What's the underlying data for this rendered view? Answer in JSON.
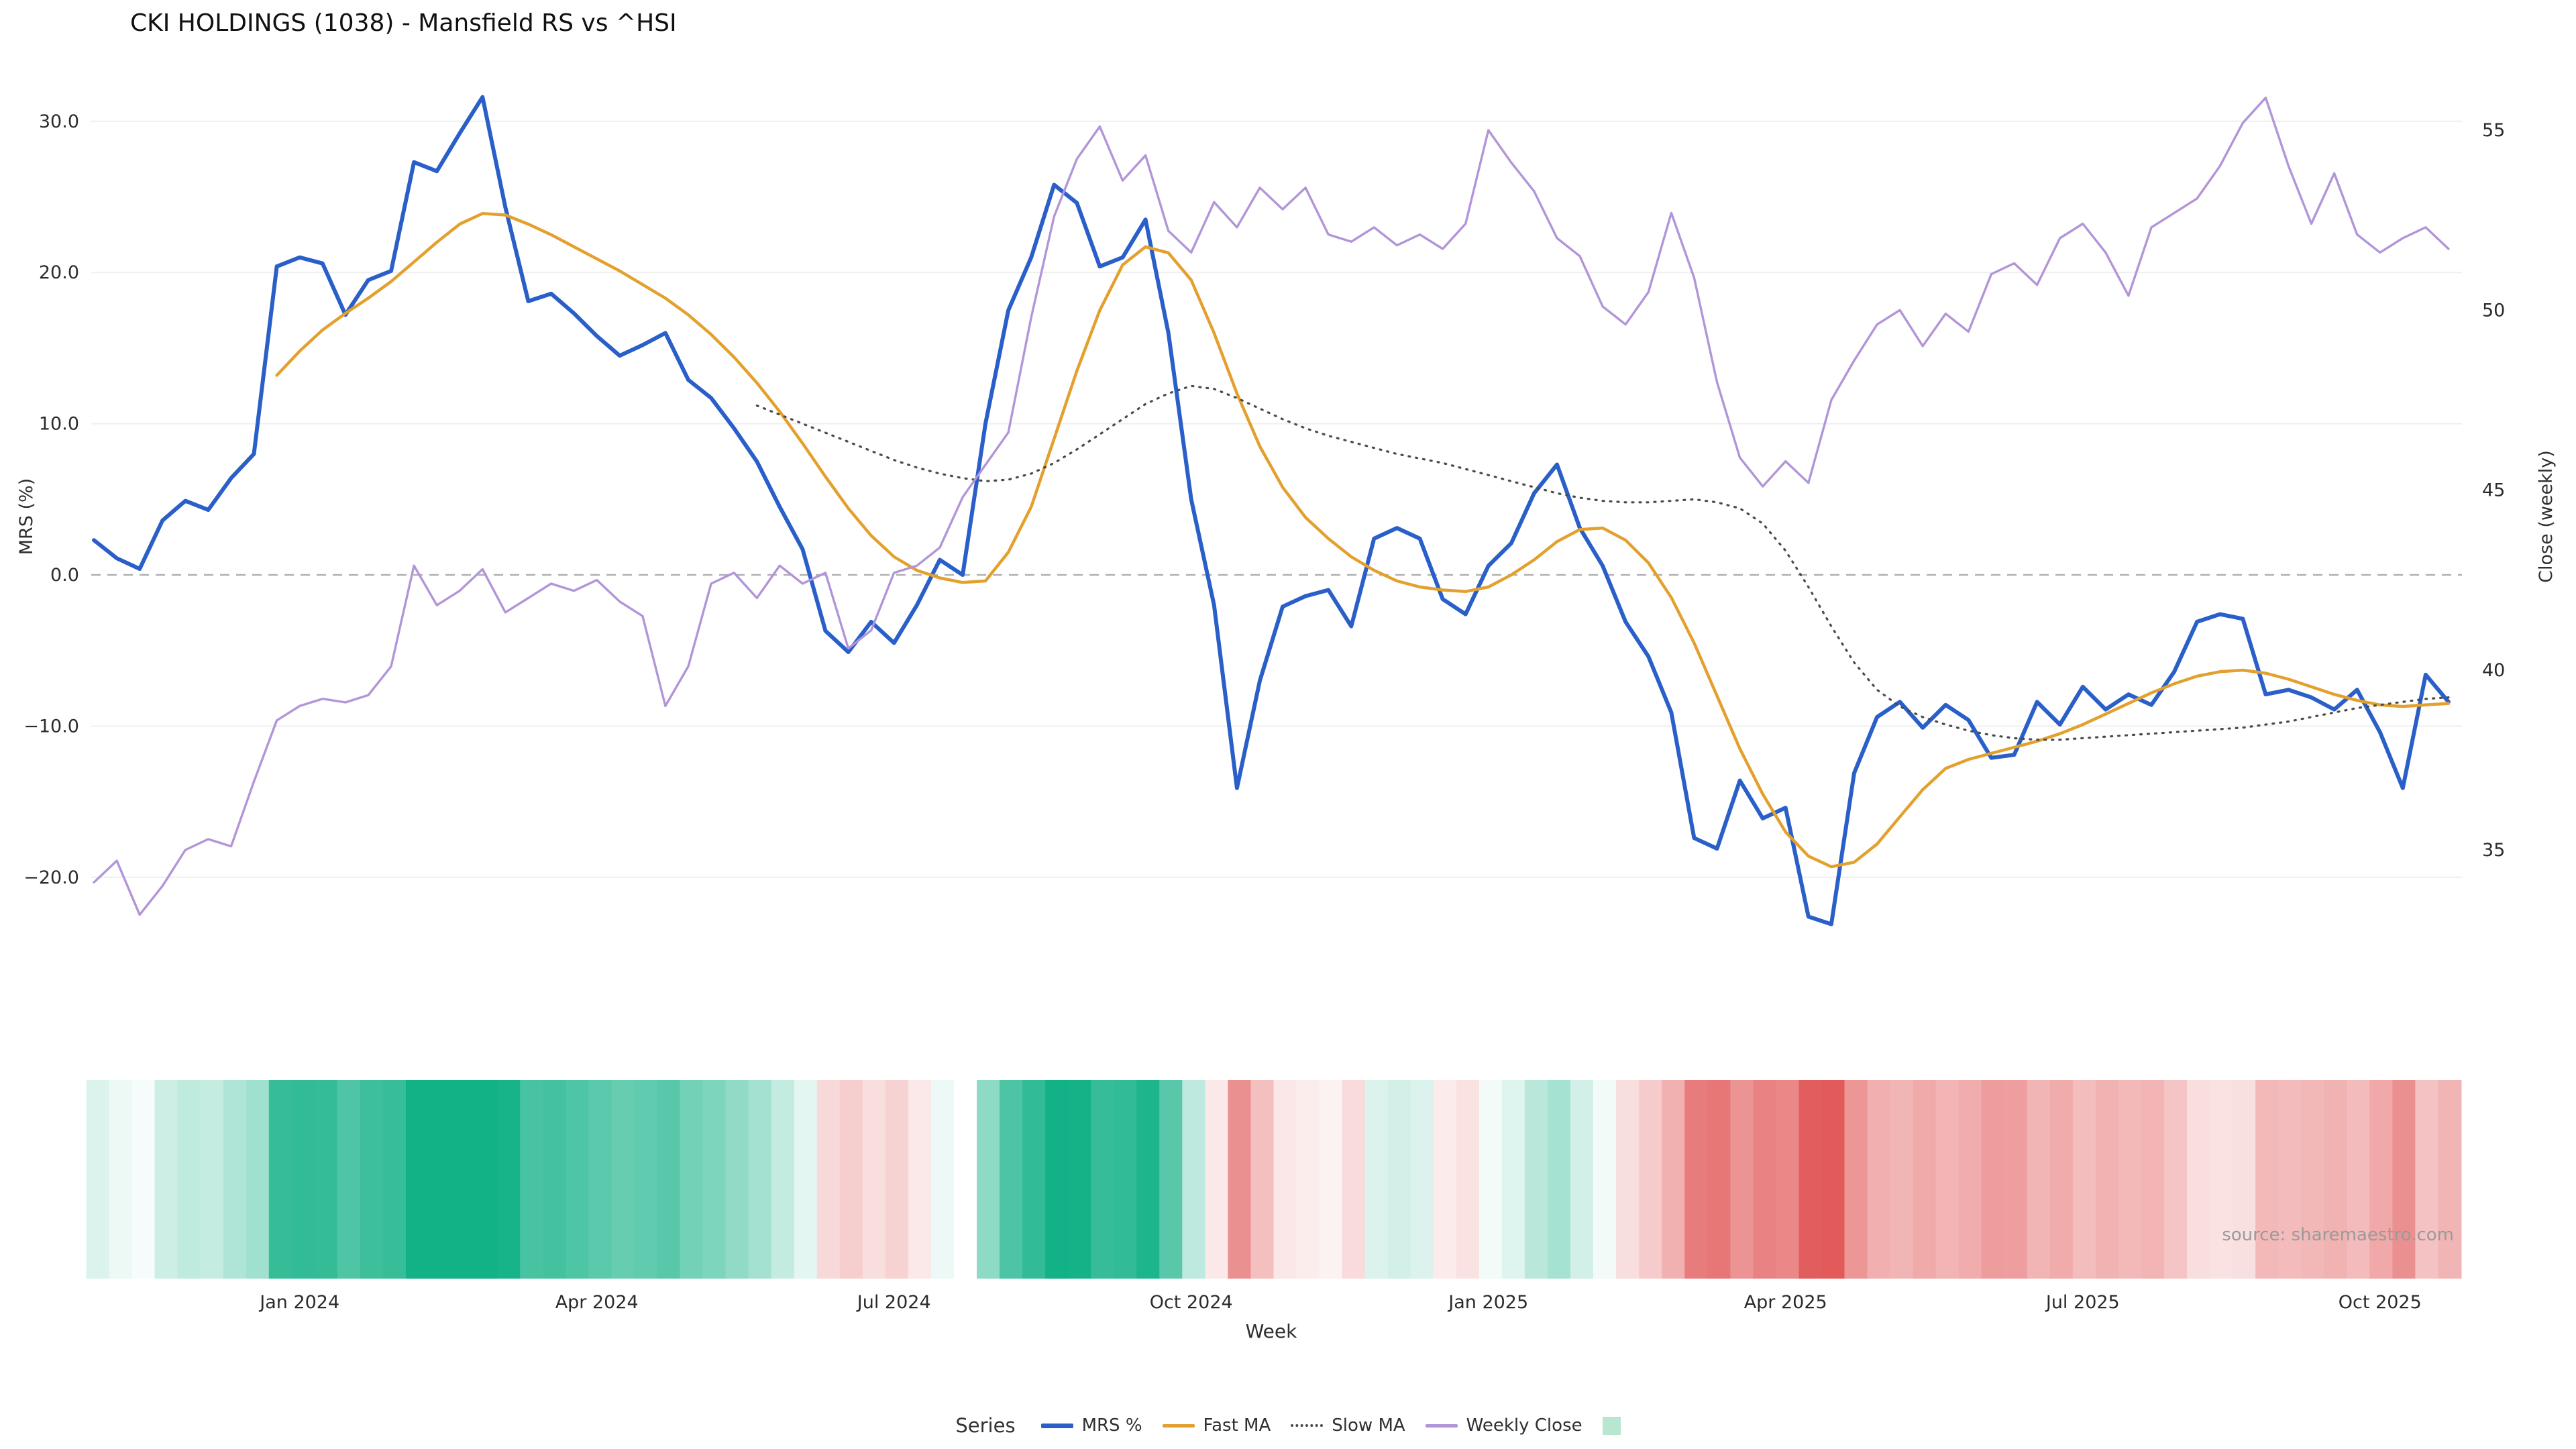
{
  "title": "CKI HOLDINGS (1038) - Mansfield RS vs ^HSI",
  "source": "source: sharemaestro.com",
  "axes": {
    "left_title": "MRS (%)",
    "right_title": "Close (weekly)",
    "x_title": "Week",
    "left_ticks": [
      {
        "label": "30.0",
        "value": 30
      },
      {
        "label": "20.0",
        "value": 20
      },
      {
        "label": "10.0",
        "value": 10
      },
      {
        "label": "0.0",
        "value": 0
      },
      {
        "label": "−10.0",
        "value": -10
      },
      {
        "label": "−20.0",
        "value": -20
      }
    ],
    "right_ticks": [
      {
        "label": "55",
        "value": 55
      },
      {
        "label": "50",
        "value": 50
      },
      {
        "label": "45",
        "value": 45
      },
      {
        "label": "40",
        "value": 40
      },
      {
        "label": "35",
        "value": 35
      }
    ],
    "x_ticks": [
      {
        "label": "Jan 2024",
        "week": 9
      },
      {
        "label": "Apr 2024",
        "week": 22
      },
      {
        "label": "Jul 2024",
        "week": 35
      },
      {
        "label": "Oct 2024",
        "week": 48
      },
      {
        "label": "Jan 2025",
        "week": 61
      },
      {
        "label": "Apr 2025",
        "week": 74
      },
      {
        "label": "Jul 2025",
        "week": 87
      },
      {
        "label": "Oct 2025",
        "week": 100
      }
    ]
  },
  "legend": {
    "title": "Series",
    "entries": [
      {
        "label": "MRS %",
        "swatch": "line",
        "color": "#2a5fc9"
      },
      {
        "label": "Fast MA",
        "swatch": "line",
        "color": "#e3a02d"
      },
      {
        "label": "Slow MA",
        "swatch": "dotted-line",
        "color": "#4a4a4a"
      },
      {
        "label": "Weekly Close",
        "swatch": "line",
        "color": "#b295d8"
      },
      {
        "label": "",
        "swatch": "square",
        "color": "#b9e6d1"
      }
    ]
  },
  "colors": {
    "background": "#ffffff",
    "grid": "#efefef",
    "zero_line": "#b0b0b0",
    "tick_text": "#2b2b2b",
    "title_text": "#111111",
    "source_text": "#9a9a9a"
  },
  "chart_data": {
    "type": "line",
    "title": "CKI HOLDINGS (1038) - Mansfield RS vs ^HSI",
    "x_unit": "week",
    "n_points": 104,
    "xlabel": "Week",
    "left_axis": {
      "title": "MRS (%)",
      "ticks": [
        30,
        20,
        10,
        0,
        -10,
        -20
      ],
      "range": [
        -27,
        33
      ]
    },
    "right_axis": {
      "title": "Close (weekly)",
      "ticks": [
        55,
        50,
        45,
        40,
        35
      ],
      "range": [
        33,
        57
      ]
    },
    "zero_line": true,
    "legend_position": "bottom-center",
    "series": [
      {
        "name": "MRS %",
        "axis": "left",
        "color": "#2a5fc9",
        "style": "solid",
        "width": 6,
        "values": [
          2.3,
          1.1,
          0.4,
          3.6,
          4.9,
          4.3,
          6.4,
          8.0,
          20.4,
          21.0,
          20.6,
          17.2,
          19.5,
          20.1,
          27.3,
          26.7,
          29.2,
          31.6,
          24.3,
          18.1,
          18.6,
          17.3,
          15.8,
          14.5,
          15.2,
          16.0,
          12.9,
          11.7,
          9.7,
          7.5,
          4.5,
          1.7,
          -3.7,
          -5.1,
          -3.1,
          -4.5,
          -2.0,
          1.0,
          0.0,
          10.0,
          17.5,
          21.0,
          25.8,
          24.6,
          20.4,
          21.0,
          23.5,
          16.0,
          5.0,
          -2.0,
          -14.1,
          -7.0,
          -2.1,
          -1.4,
          -1.0,
          -3.4,
          2.4,
          3.1,
          2.4,
          -1.6,
          -2.6,
          0.6,
          2.1,
          5.4,
          7.3,
          3.1,
          0.6,
          -3.1,
          -5.4,
          -9.1,
          -17.4,
          -18.1,
          -13.6,
          -16.1,
          -15.4,
          -22.6,
          -23.1,
          -13.1,
          -9.4,
          -8.4,
          -10.1,
          -8.6,
          -9.6,
          -12.1,
          -11.9,
          -8.4,
          -9.9,
          -7.4,
          -8.9,
          -7.9,
          -8.6,
          -6.4,
          -3.1,
          -2.6,
          -2.9,
          -7.9,
          -7.6,
          -8.1,
          -8.9,
          -7.6,
          -10.4,
          -14.1,
          -6.6,
          -8.4
        ]
      },
      {
        "name": "Fast MA",
        "axis": "left",
        "color": "#e3a02d",
        "style": "solid",
        "width": 4.5,
        "values": [
          null,
          null,
          null,
          null,
          null,
          null,
          null,
          null,
          13.2,
          14.8,
          16.2,
          17.3,
          18.3,
          19.4,
          20.7,
          22.0,
          23.2,
          23.9,
          23.8,
          23.2,
          22.5,
          21.7,
          20.9,
          20.1,
          19.2,
          18.3,
          17.2,
          15.9,
          14.4,
          12.7,
          10.8,
          8.7,
          6.5,
          4.4,
          2.6,
          1.2,
          0.3,
          -0.2,
          -0.5,
          -0.4,
          1.5,
          4.5,
          9.0,
          13.5,
          17.5,
          20.5,
          21.7,
          21.3,
          19.5,
          16.0,
          12.0,
          8.5,
          5.8,
          3.8,
          2.4,
          1.2,
          0.3,
          -0.4,
          -0.8,
          -1.0,
          -1.1,
          -0.8,
          0.0,
          1.0,
          2.2,
          3.0,
          3.1,
          2.3,
          0.8,
          -1.5,
          -4.5,
          -8.0,
          -11.5,
          -14.5,
          -17.0,
          -18.6,
          -19.3,
          -19.0,
          -17.8,
          -16.0,
          -14.2,
          -12.8,
          -12.2,
          -11.8,
          -11.4,
          -11.0,
          -10.5,
          -9.9,
          -9.2,
          -8.5,
          -7.8,
          -7.2,
          -6.7,
          -6.4,
          -6.3,
          -6.5,
          -6.9,
          -7.4,
          -7.9,
          -8.3,
          -8.6,
          -8.7,
          -8.6,
          -8.5
        ]
      },
      {
        "name": "Slow MA",
        "axis": "left",
        "color": "#4a4a4a",
        "style": "dotted",
        "width": 3.2,
        "values": [
          null,
          null,
          null,
          null,
          null,
          null,
          null,
          null,
          null,
          null,
          null,
          null,
          null,
          null,
          null,
          null,
          null,
          null,
          null,
          null,
          null,
          null,
          null,
          null,
          null,
          null,
          null,
          null,
          null,
          11.2,
          10.6,
          10.0,
          9.4,
          8.8,
          8.2,
          7.6,
          7.1,
          6.7,
          6.4,
          6.2,
          6.3,
          6.7,
          7.4,
          8.3,
          9.3,
          10.3,
          11.3,
          12.0,
          12.5,
          12.3,
          11.7,
          11.0,
          10.3,
          9.7,
          9.2,
          8.8,
          8.4,
          8.0,
          7.7,
          7.4,
          7.0,
          6.6,
          6.2,
          5.8,
          5.4,
          5.1,
          4.9,
          4.8,
          4.8,
          4.9,
          5.0,
          4.8,
          4.4,
          3.4,
          1.6,
          -0.8,
          -3.4,
          -5.8,
          -7.6,
          -8.7,
          -9.4,
          -9.9,
          -10.3,
          -10.6,
          -10.8,
          -10.9,
          -10.9,
          -10.8,
          -10.7,
          -10.6,
          -10.5,
          -10.4,
          -10.3,
          -10.2,
          -10.1,
          -9.9,
          -9.7,
          -9.4,
          -9.1,
          -8.8,
          -8.6,
          -8.4,
          -8.2,
          -8.1
        ]
      },
      {
        "name": "Weekly Close",
        "axis": "right",
        "color": "#b295d8",
        "style": "solid",
        "width": 3.4,
        "values": [
          34.1,
          34.7,
          33.2,
          34.0,
          35.0,
          35.3,
          35.1,
          36.9,
          38.6,
          39.0,
          39.2,
          39.1,
          39.3,
          40.1,
          42.9,
          41.8,
          42.2,
          42.8,
          41.6,
          42.0,
          42.4,
          42.2,
          42.5,
          41.9,
          41.5,
          39.0,
          40.1,
          42.4,
          42.7,
          42.0,
          42.9,
          42.4,
          42.7,
          40.6,
          41.1,
          42.7,
          42.9,
          43.4,
          44.8,
          45.7,
          46.6,
          49.8,
          52.6,
          54.2,
          55.1,
          53.6,
          54.3,
          52.2,
          51.6,
          53.0,
          52.3,
          53.4,
          52.8,
          53.4,
          52.1,
          51.9,
          52.3,
          51.8,
          52.1,
          51.7,
          52.4,
          55.0,
          54.1,
          53.3,
          52.0,
          51.5,
          50.1,
          49.6,
          50.5,
          52.7,
          50.9,
          48.0,
          45.9,
          45.1,
          45.8,
          45.2,
          47.5,
          48.6,
          49.6,
          50.0,
          49.0,
          49.9,
          49.4,
          51.0,
          51.3,
          50.7,
          52.0,
          52.4,
          51.6,
          50.4,
          52.3,
          52.7,
          53.1,
          54.0,
          55.2,
          55.9,
          54.0,
          52.4,
          53.8,
          52.1,
          51.6,
          52.0,
          52.3,
          51.7
        ]
      }
    ],
    "heatmap": {
      "derived_from": "MRS %",
      "positive_color": "#12b186",
      "negative_color": "#e04f4f",
      "max_abs": 25
    }
  }
}
